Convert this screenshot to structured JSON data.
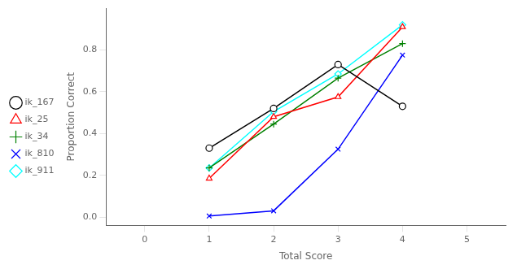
{
  "chart_data": {
    "type": "line",
    "x": [
      1,
      2,
      3,
      4
    ],
    "series": [
      {
        "name": "ik_167",
        "color": "black",
        "marker": "circle",
        "values": [
          0.33,
          0.52,
          0.73,
          0.53
        ]
      },
      {
        "name": "ik_25",
        "color": "red",
        "marker": "triangle",
        "values": [
          0.185,
          0.48,
          0.575,
          0.91
        ]
      },
      {
        "name": "ik_34",
        "color": "green",
        "marker": "plus",
        "values": [
          0.235,
          0.445,
          0.665,
          0.83
        ]
      },
      {
        "name": "ik_810",
        "color": "blue",
        "marker": "x",
        "values": [
          0.005,
          0.03,
          0.325,
          0.775
        ]
      },
      {
        "name": "ik_911",
        "color": "cyan",
        "marker": "diamond",
        "values": [
          0.235,
          0.505,
          0.685,
          0.92
        ]
      }
    ],
    "x_label": "Total Score",
    "y_label": "Proportion Correct",
    "xlim": [
      -0.6,
      5.6
    ],
    "xticks": [
      0,
      1,
      2,
      3,
      4,
      5
    ],
    "ylim": [
      -0.04,
      1.0
    ],
    "yticks": [
      {
        "value": 0,
        "label": "0.0"
      },
      0.2,
      0.4,
      0.6,
      0.8
    ],
    "grid": false,
    "legend": "left"
  }
}
